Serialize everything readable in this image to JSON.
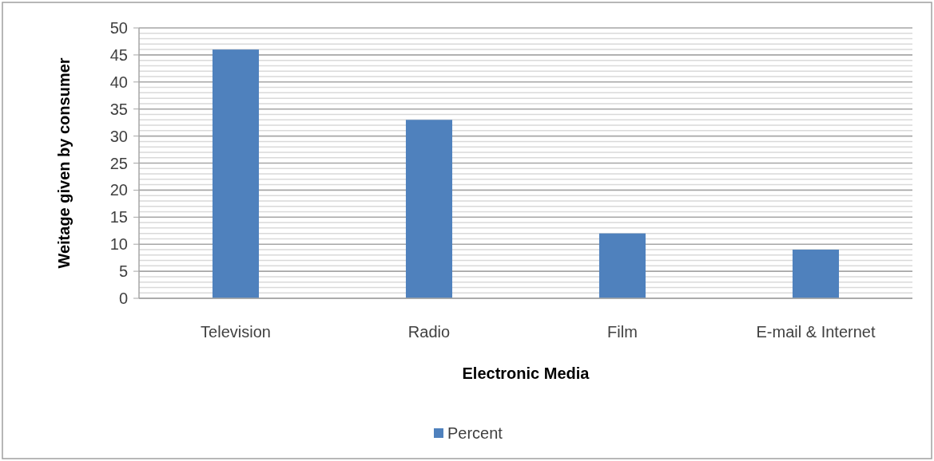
{
  "chart_data": {
    "type": "bar",
    "xlabel": "Electronic Media",
    "ylabel": "Weitage given by consumer",
    "categories": [
      "Television",
      "Radio",
      "Film",
      "E-mail & Internet"
    ],
    "series": [
      {
        "name": "Percent",
        "color": "#4f81bd",
        "values": [
          46,
          33,
          12,
          9
        ]
      }
    ],
    "ylim": [
      0,
      50
    ],
    "yticks": [
      0,
      {
        "value": 1,
        "label": null
      },
      {
        "value": 2,
        "label": null
      },
      {
        "value": 3,
        "label": null
      },
      {
        "value": 4,
        "label": null
      },
      5,
      {
        "value": 6,
        "label": null
      },
      {
        "value": 7,
        "label": null
      },
      {
        "value": 8,
        "label": null
      },
      {
        "value": 9,
        "label": null
      },
      10,
      {
        "value": 11,
        "label": null
      },
      {
        "value": 12,
        "label": null
      },
      {
        "value": 13,
        "label": null
      },
      {
        "value": 14,
        "label": null
      },
      15,
      {
        "value": 16,
        "label": null
      },
      {
        "value": 17,
        "label": null
      },
      {
        "value": 18,
        "label": null
      },
      {
        "value": 19,
        "label": null
      },
      20,
      {
        "value": 21,
        "label": null
      },
      {
        "value": 22,
        "label": null
      },
      {
        "value": 23,
        "label": null
      },
      {
        "value": 24,
        "label": null
      },
      25,
      {
        "value": 26,
        "label": null
      },
      {
        "value": 27,
        "label": null
      },
      {
        "value": 28,
        "label": null
      },
      {
        "value": 29,
        "label": null
      },
      30,
      {
        "value": 31,
        "label": null
      },
      {
        "value": 32,
        "label": null
      },
      {
        "value": 33,
        "label": null
      },
      {
        "value": 34,
        "label": null
      },
      35,
      {
        "value": 36,
        "label": null
      },
      {
        "value": 37,
        "label": null
      },
      {
        "value": 38,
        "label": null
      },
      {
        "value": 39,
        "label": null
      },
      40,
      {
        "value": 41,
        "label": null
      },
      {
        "value": 42,
        "label": null
      },
      {
        "value": 43,
        "label": null
      },
      {
        "value": 44,
        "label": null
      },
      45,
      {
        "value": 46,
        "label": null
      },
      {
        "value": 47,
        "label": null
      },
      {
        "value": 48,
        "label": null
      },
      {
        "value": 49,
        "label": null
      },
      50
    ],
    "grid": "y",
    "legend": "bottom"
  }
}
